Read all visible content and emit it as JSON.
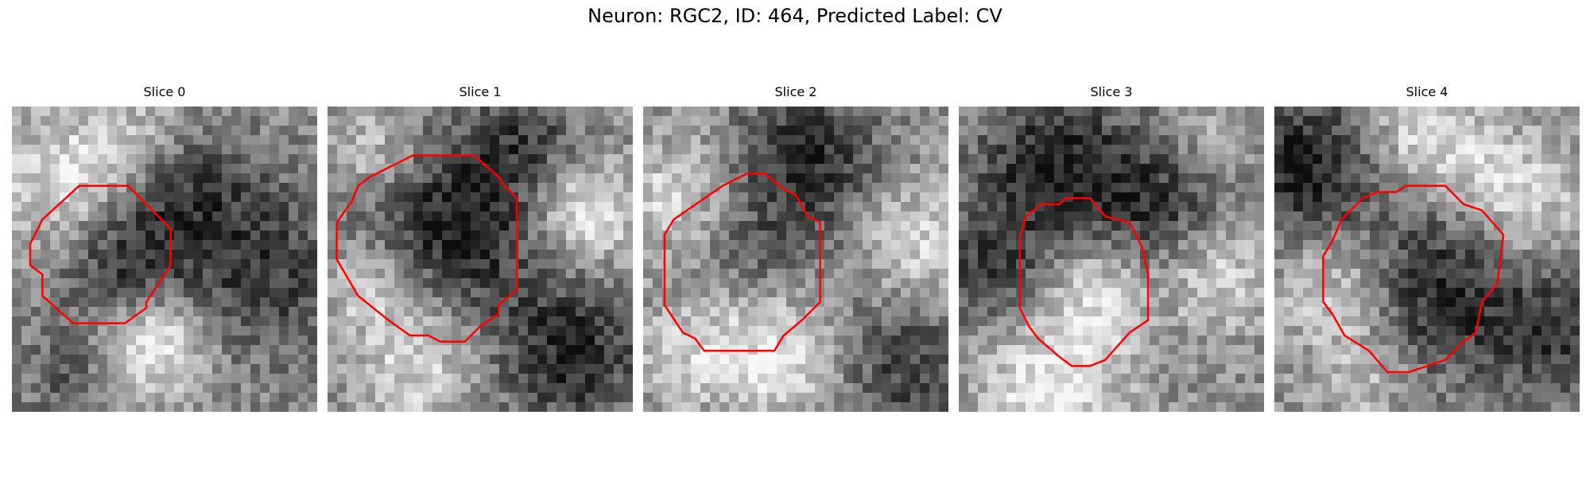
{
  "figure": {
    "title": "Neuron: RGC2, ID: 464, Predicted Label: CV"
  },
  "panels": [
    {
      "title": "Slice 0"
    },
    {
      "title": "Slice 1"
    },
    {
      "title": "Slice 2"
    },
    {
      "title": "Slice 3"
    },
    {
      "title": "Slice 4"
    }
  ],
  "colors": {
    "contour": "#ff0000",
    "background": "#ffffff"
  }
}
